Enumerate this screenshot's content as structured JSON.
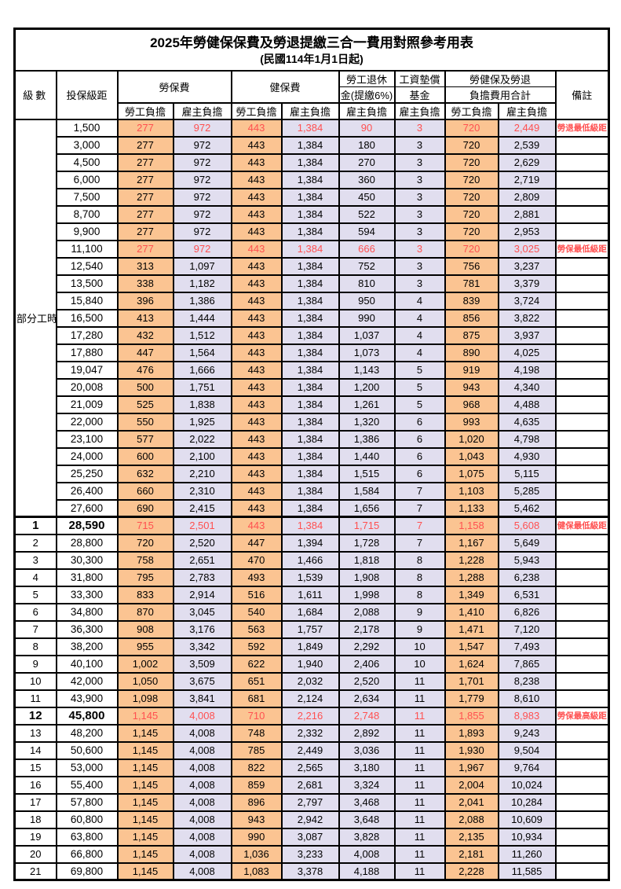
{
  "title": "2025年勞健保保費及勞退提繳三合一費用對照參考用表",
  "subtitle": "(民國114年1月1日起)",
  "header": {
    "level": "級數",
    "bracket": "投保級距",
    "labor_insurance": "勞保費",
    "health_insurance": "健保費",
    "pension_line1": "勞工退休",
    "pension_line2": "金(提繳6%)",
    "wage_fund_line1": "工資墊償",
    "wage_fund_line2": "基金",
    "total_line1": "勞健保及勞退",
    "total_line2": "負擔費用合計",
    "remark": "備註",
    "employee_label": "勞工負擔",
    "employer_label": "雇主負擔"
  },
  "part_time_label": "部分工時",
  "part_time_rowspan": 23,
  "colors": {
    "employee_bg": "#FBC492",
    "employer_bg": "#E1DEEF",
    "highlight_red": "#FF5050"
  },
  "rows": [
    {
      "level": "",
      "bracket": "1,500",
      "values": [
        "277",
        "972",
        "443",
        "1,384",
        "90",
        "3",
        "720",
        "2,449"
      ],
      "remark": "勞退最低級距",
      "highlight": true,
      "bold": false,
      "sep": false
    },
    {
      "level": "",
      "bracket": "3,000",
      "values": [
        "277",
        "972",
        "443",
        "1,384",
        "180",
        "3",
        "720",
        "2,539"
      ],
      "remark": "",
      "highlight": false,
      "bold": false,
      "sep": false
    },
    {
      "level": "",
      "bracket": "4,500",
      "values": [
        "277",
        "972",
        "443",
        "1,384",
        "270",
        "3",
        "720",
        "2,629"
      ],
      "remark": "",
      "highlight": false,
      "bold": false,
      "sep": false
    },
    {
      "level": "",
      "bracket": "6,000",
      "values": [
        "277",
        "972",
        "443",
        "1,384",
        "360",
        "3",
        "720",
        "2,719"
      ],
      "remark": "",
      "highlight": false,
      "bold": false,
      "sep": false
    },
    {
      "level": "",
      "bracket": "7,500",
      "values": [
        "277",
        "972",
        "443",
        "1,384",
        "450",
        "3",
        "720",
        "2,809"
      ],
      "remark": "",
      "highlight": false,
      "bold": false,
      "sep": false
    },
    {
      "level": "",
      "bracket": "8,700",
      "values": [
        "277",
        "972",
        "443",
        "1,384",
        "522",
        "3",
        "720",
        "2,881"
      ],
      "remark": "",
      "highlight": false,
      "bold": false,
      "sep": false
    },
    {
      "level": "",
      "bracket": "9,900",
      "values": [
        "277",
        "972",
        "443",
        "1,384",
        "594",
        "3",
        "720",
        "2,953"
      ],
      "remark": "",
      "highlight": false,
      "bold": false,
      "sep": false
    },
    {
      "level": "",
      "bracket": "11,100",
      "values": [
        "277",
        "972",
        "443",
        "1,384",
        "666",
        "3",
        "720",
        "3,025"
      ],
      "remark": "勞保最低級距",
      "highlight": true,
      "bold": false,
      "sep": false
    },
    {
      "level": "",
      "bracket": "12,540",
      "values": [
        "313",
        "1,097",
        "443",
        "1,384",
        "752",
        "3",
        "756",
        "3,237"
      ],
      "remark": "",
      "highlight": false,
      "bold": false,
      "sep": false
    },
    {
      "level": "",
      "bracket": "13,500",
      "values": [
        "338",
        "1,182",
        "443",
        "1,384",
        "810",
        "3",
        "781",
        "3,379"
      ],
      "remark": "",
      "highlight": false,
      "bold": false,
      "sep": false
    },
    {
      "level": "",
      "bracket": "15,840",
      "values": [
        "396",
        "1,386",
        "443",
        "1,384",
        "950",
        "4",
        "839",
        "3,724"
      ],
      "remark": "",
      "highlight": false,
      "bold": false,
      "sep": false
    },
    {
      "level": "",
      "bracket": "16,500",
      "values": [
        "413",
        "1,444",
        "443",
        "1,384",
        "990",
        "4",
        "856",
        "3,822"
      ],
      "remark": "",
      "highlight": false,
      "bold": false,
      "sep": false
    },
    {
      "level": "",
      "bracket": "17,280",
      "values": [
        "432",
        "1,512",
        "443",
        "1,384",
        "1,037",
        "4",
        "875",
        "3,937"
      ],
      "remark": "",
      "highlight": false,
      "bold": false,
      "sep": false
    },
    {
      "level": "",
      "bracket": "17,880",
      "values": [
        "447",
        "1,564",
        "443",
        "1,384",
        "1,073",
        "4",
        "890",
        "4,025"
      ],
      "remark": "",
      "highlight": false,
      "bold": false,
      "sep": false
    },
    {
      "level": "",
      "bracket": "19,047",
      "values": [
        "476",
        "1,666",
        "443",
        "1,384",
        "1,143",
        "5",
        "919",
        "4,198"
      ],
      "remark": "",
      "highlight": false,
      "bold": false,
      "sep": false
    },
    {
      "level": "",
      "bracket": "20,008",
      "values": [
        "500",
        "1,751",
        "443",
        "1,384",
        "1,200",
        "5",
        "943",
        "4,340"
      ],
      "remark": "",
      "highlight": false,
      "bold": false,
      "sep": false
    },
    {
      "level": "",
      "bracket": "21,009",
      "values": [
        "525",
        "1,838",
        "443",
        "1,384",
        "1,261",
        "5",
        "968",
        "4,488"
      ],
      "remark": "",
      "highlight": false,
      "bold": false,
      "sep": false
    },
    {
      "level": "",
      "bracket": "22,000",
      "values": [
        "550",
        "1,925",
        "443",
        "1,384",
        "1,320",
        "6",
        "993",
        "4,635"
      ],
      "remark": "",
      "highlight": false,
      "bold": false,
      "sep": false
    },
    {
      "level": "",
      "bracket": "23,100",
      "values": [
        "577",
        "2,022",
        "443",
        "1,384",
        "1,386",
        "6",
        "1,020",
        "4,798"
      ],
      "remark": "",
      "highlight": false,
      "bold": false,
      "sep": false
    },
    {
      "level": "",
      "bracket": "24,000",
      "values": [
        "600",
        "2,100",
        "443",
        "1,384",
        "1,440",
        "6",
        "1,043",
        "4,930"
      ],
      "remark": "",
      "highlight": false,
      "bold": false,
      "sep": false
    },
    {
      "level": "",
      "bracket": "25,250",
      "values": [
        "632",
        "2,210",
        "443",
        "1,384",
        "1,515",
        "6",
        "1,075",
        "5,115"
      ],
      "remark": "",
      "highlight": false,
      "bold": false,
      "sep": false
    },
    {
      "level": "",
      "bracket": "26,400",
      "values": [
        "660",
        "2,310",
        "443",
        "1,384",
        "1,584",
        "7",
        "1,103",
        "5,285"
      ],
      "remark": "",
      "highlight": false,
      "bold": false,
      "sep": false
    },
    {
      "level": "",
      "bracket": "27,600",
      "values": [
        "690",
        "2,415",
        "443",
        "1,384",
        "1,656",
        "7",
        "1,133",
        "5,462"
      ],
      "remark": "",
      "highlight": false,
      "bold": false,
      "sep": false
    },
    {
      "level": "1",
      "bracket": "28,590",
      "values": [
        "715",
        "2,501",
        "443",
        "1,384",
        "1,715",
        "7",
        "1,158",
        "5,608"
      ],
      "remark": "健保最低級距",
      "highlight": true,
      "bold": true,
      "sep": true
    },
    {
      "level": "2",
      "bracket": "28,800",
      "values": [
        "720",
        "2,520",
        "447",
        "1,394",
        "1,728",
        "7",
        "1,167",
        "5,649"
      ],
      "remark": "",
      "highlight": false,
      "bold": false,
      "sep": false
    },
    {
      "level": "3",
      "bracket": "30,300",
      "values": [
        "758",
        "2,651",
        "470",
        "1,466",
        "1,818",
        "8",
        "1,228",
        "5,943"
      ],
      "remark": "",
      "highlight": false,
      "bold": false,
      "sep": false
    },
    {
      "level": "4",
      "bracket": "31,800",
      "values": [
        "795",
        "2,783",
        "493",
        "1,539",
        "1,908",
        "8",
        "1,288",
        "6,238"
      ],
      "remark": "",
      "highlight": false,
      "bold": false,
      "sep": false
    },
    {
      "level": "5",
      "bracket": "33,300",
      "values": [
        "833",
        "2,914",
        "516",
        "1,611",
        "1,998",
        "8",
        "1,349",
        "6,531"
      ],
      "remark": "",
      "highlight": false,
      "bold": false,
      "sep": false
    },
    {
      "level": "6",
      "bracket": "34,800",
      "values": [
        "870",
        "3,045",
        "540",
        "1,684",
        "2,088",
        "9",
        "1,410",
        "6,826"
      ],
      "remark": "",
      "highlight": false,
      "bold": false,
      "sep": false
    },
    {
      "level": "7",
      "bracket": "36,300",
      "values": [
        "908",
        "3,176",
        "563",
        "1,757",
        "2,178",
        "9",
        "1,471",
        "7,120"
      ],
      "remark": "",
      "highlight": false,
      "bold": false,
      "sep": false
    },
    {
      "level": "8",
      "bracket": "38,200",
      "values": [
        "955",
        "3,342",
        "592",
        "1,849",
        "2,292",
        "10",
        "1,547",
        "7,493"
      ],
      "remark": "",
      "highlight": false,
      "bold": false,
      "sep": false
    },
    {
      "level": "9",
      "bracket": "40,100",
      "values": [
        "1,002",
        "3,509",
        "622",
        "1,940",
        "2,406",
        "10",
        "1,624",
        "7,865"
      ],
      "remark": "",
      "highlight": false,
      "bold": false,
      "sep": false
    },
    {
      "level": "10",
      "bracket": "42,000",
      "values": [
        "1,050",
        "3,675",
        "651",
        "2,032",
        "2,520",
        "11",
        "1,701",
        "8,238"
      ],
      "remark": "",
      "highlight": false,
      "bold": false,
      "sep": false
    },
    {
      "level": "11",
      "bracket": "43,900",
      "values": [
        "1,098",
        "3,841",
        "681",
        "2,124",
        "2,634",
        "11",
        "1,779",
        "8,610"
      ],
      "remark": "",
      "highlight": false,
      "bold": false,
      "sep": false
    },
    {
      "level": "12",
      "bracket": "45,800",
      "values": [
        "1,145",
        "4,008",
        "710",
        "2,216",
        "2,748",
        "11",
        "1,855",
        "8,983"
      ],
      "remark": "勞保最高級距",
      "highlight": true,
      "bold": true,
      "sep": false
    },
    {
      "level": "13",
      "bracket": "48,200",
      "values": [
        "1,145",
        "4,008",
        "748",
        "2,332",
        "2,892",
        "11",
        "1,893",
        "9,243"
      ],
      "remark": "",
      "highlight": false,
      "bold": false,
      "sep": false
    },
    {
      "level": "14",
      "bracket": "50,600",
      "values": [
        "1,145",
        "4,008",
        "785",
        "2,449",
        "3,036",
        "11",
        "1,930",
        "9,504"
      ],
      "remark": "",
      "highlight": false,
      "bold": false,
      "sep": false
    },
    {
      "level": "15",
      "bracket": "53,000",
      "values": [
        "1,145",
        "4,008",
        "822",
        "2,565",
        "3,180",
        "11",
        "1,967",
        "9,764"
      ],
      "remark": "",
      "highlight": false,
      "bold": false,
      "sep": false
    },
    {
      "level": "16",
      "bracket": "55,400",
      "values": [
        "1,145",
        "4,008",
        "859",
        "2,681",
        "3,324",
        "11",
        "2,004",
        "10,024"
      ],
      "remark": "",
      "highlight": false,
      "bold": false,
      "sep": false
    },
    {
      "level": "17",
      "bracket": "57,800",
      "values": [
        "1,145",
        "4,008",
        "896",
        "2,797",
        "3,468",
        "11",
        "2,041",
        "10,284"
      ],
      "remark": "",
      "highlight": false,
      "bold": false,
      "sep": false
    },
    {
      "level": "18",
      "bracket": "60,800",
      "values": [
        "1,145",
        "4,008",
        "943",
        "2,942",
        "3,648",
        "11",
        "2,088",
        "10,609"
      ],
      "remark": "",
      "highlight": false,
      "bold": false,
      "sep": false
    },
    {
      "level": "19",
      "bracket": "63,800",
      "values": [
        "1,145",
        "4,008",
        "990",
        "3,087",
        "3,828",
        "11",
        "2,135",
        "10,934"
      ],
      "remark": "",
      "highlight": false,
      "bold": false,
      "sep": false
    },
    {
      "level": "20",
      "bracket": "66,800",
      "values": [
        "1,145",
        "4,008",
        "1,036",
        "3,233",
        "4,008",
        "11",
        "2,181",
        "11,260"
      ],
      "remark": "",
      "highlight": false,
      "bold": false,
      "sep": false
    },
    {
      "level": "21",
      "bracket": "69,800",
      "values": [
        "1,145",
        "4,008",
        "1,083",
        "3,378",
        "4,188",
        "11",
        "2,228",
        "11,585"
      ],
      "remark": "",
      "highlight": false,
      "bold": false,
      "sep": false
    }
  ]
}
